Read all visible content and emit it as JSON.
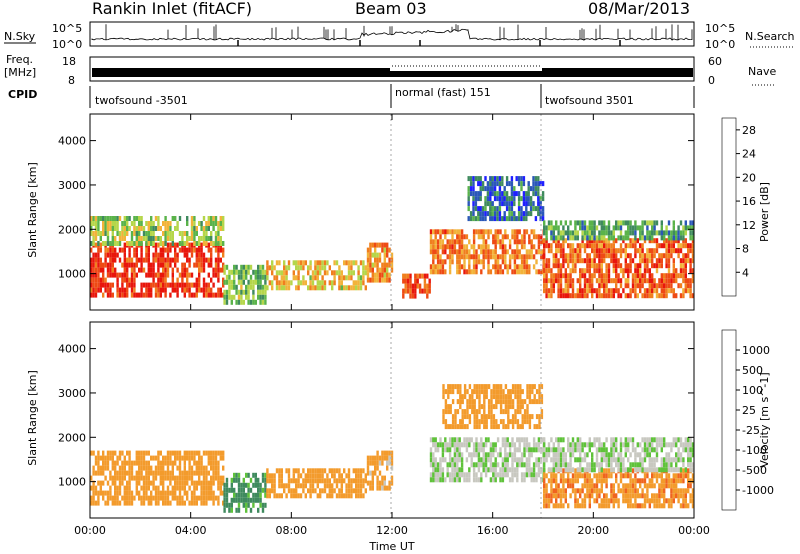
{
  "header": {
    "station": "Rankin Inlet (fitACF)",
    "beam": "Beam 03",
    "date": "08/Mar/2013"
  },
  "noise_panel": {
    "left_label": "N.Sky",
    "right_label": "N.Search",
    "left_ticks": [
      "10^5",
      "10^0"
    ],
    "right_ticks": [
      "10^5",
      "10^0"
    ]
  },
  "freq_panel": {
    "left_label_1": "Freq.",
    "left_label_2": "[MHz]",
    "left_ticks": [
      "18",
      "8"
    ],
    "right_label": "Nave",
    "right_ticks": [
      "60",
      "0"
    ]
  },
  "cpid_panel": {
    "label": "CPID",
    "segments": [
      {
        "name": "twofsound -3501",
        "start": 0,
        "end": 12
      },
      {
        "name": "normal (fast) 151",
        "start": 12,
        "end": 18
      },
      {
        "name": "twofsound 3501",
        "start": 18,
        "end": 24
      }
    ]
  },
  "colors": {
    "power_scale": [
      "#1f1fff",
      "#2b57b8",
      "#3f8a5e",
      "#5ab34a",
      "#b5d64a",
      "#f2b33a",
      "#f07f1e",
      "#ee4a14",
      "#e8160c"
    ],
    "velocity_scale": [
      "#ff1a1a",
      "#f0641e",
      "#f39b2c",
      "#c8c8c0",
      "#c8c8c0",
      "#5fc23a",
      "#3f8a5e",
      "#2b57b8",
      "#1a1aff"
    ]
  },
  "chart_data": [
    {
      "type": "heatmap",
      "title": "Power",
      "xlabel": "Time UT",
      "ylabel": "Slant Range [km]",
      "xlim": [
        0,
        24
      ],
      "ylim": [
        180,
        4600
      ],
      "x_ticks": [
        "00:00",
        "04:00",
        "08:00",
        "12:00",
        "16:00",
        "20:00",
        "00:00"
      ],
      "y_ticks": [
        "1000",
        "2000",
        "3000",
        "4000"
      ],
      "colorbar": {
        "label": "Power [dB]",
        "ticks": [
          "4",
          "8",
          "12",
          "16",
          "20",
          "24",
          "28"
        ],
        "range": [
          0,
          30
        ]
      },
      "regions": [
        {
          "t": [
            0,
            5.3
          ],
          "r": [
            500,
            1700
          ],
          "value": 27
        },
        {
          "t": [
            0,
            5.3
          ],
          "r": [
            1700,
            2300
          ],
          "value": 14
        },
        {
          "t": [
            5.3,
            7
          ],
          "r": [
            300,
            1200
          ],
          "value": 12
        },
        {
          "t": [
            7,
            11
          ],
          "r": [
            700,
            1300
          ],
          "value": 18
        },
        {
          "t": [
            11,
            12
          ],
          "r": [
            900,
            1700
          ],
          "value": 20
        },
        {
          "t": [
            12.4,
            13.5
          ],
          "r": [
            500,
            1000
          ],
          "value": 26
        },
        {
          "t": [
            13.5,
            18
          ],
          "r": [
            1000,
            2000
          ],
          "value": 22
        },
        {
          "t": [
            15,
            18
          ],
          "r": [
            2200,
            3200
          ],
          "value": 6
        },
        {
          "t": [
            18,
            24
          ],
          "r": [
            500,
            1800
          ],
          "value": 24
        },
        {
          "t": [
            18,
            24
          ],
          "r": [
            1800,
            2200
          ],
          "value": 10
        }
      ]
    },
    {
      "type": "heatmap",
      "title": "Velocity",
      "xlabel": "Time UT",
      "ylabel": "Slant Range [km]",
      "xlim": [
        0,
        24
      ],
      "ylim": [
        180,
        4600
      ],
      "x_ticks": [
        "00:00",
        "04:00",
        "08:00",
        "12:00",
        "16:00",
        "20:00",
        "00:00"
      ],
      "y_ticks": [
        "1000",
        "2000",
        "3000",
        "4000"
      ],
      "colorbar": {
        "label": "Velocity [m s^-1]",
        "ticks": [
          "1000",
          "500",
          "100",
          "25",
          "-25",
          "-100",
          "-500",
          "-1000"
        ]
      },
      "regions": [
        {
          "t": [
            0,
            5.3
          ],
          "r": [
            500,
            1700
          ],
          "value": -300
        },
        {
          "t": [
            5.3,
            7
          ],
          "r": [
            300,
            1200
          ],
          "value": 150
        },
        {
          "t": [
            7,
            11
          ],
          "r": [
            700,
            1300
          ],
          "value": -200
        },
        {
          "t": [
            11,
            12
          ],
          "r": [
            900,
            1700
          ],
          "value": -150
        },
        {
          "t": [
            13.5,
            18
          ],
          "r": [
            1000,
            2000
          ],
          "value": 0
        },
        {
          "t": [
            14,
            18
          ],
          "r": [
            2200,
            3200
          ],
          "value": -300
        },
        {
          "t": [
            18,
            24
          ],
          "r": [
            500,
            1300
          ],
          "value": -400
        },
        {
          "t": [
            18,
            24
          ],
          "r": [
            1300,
            2000
          ],
          "value": 0
        }
      ]
    }
  ]
}
